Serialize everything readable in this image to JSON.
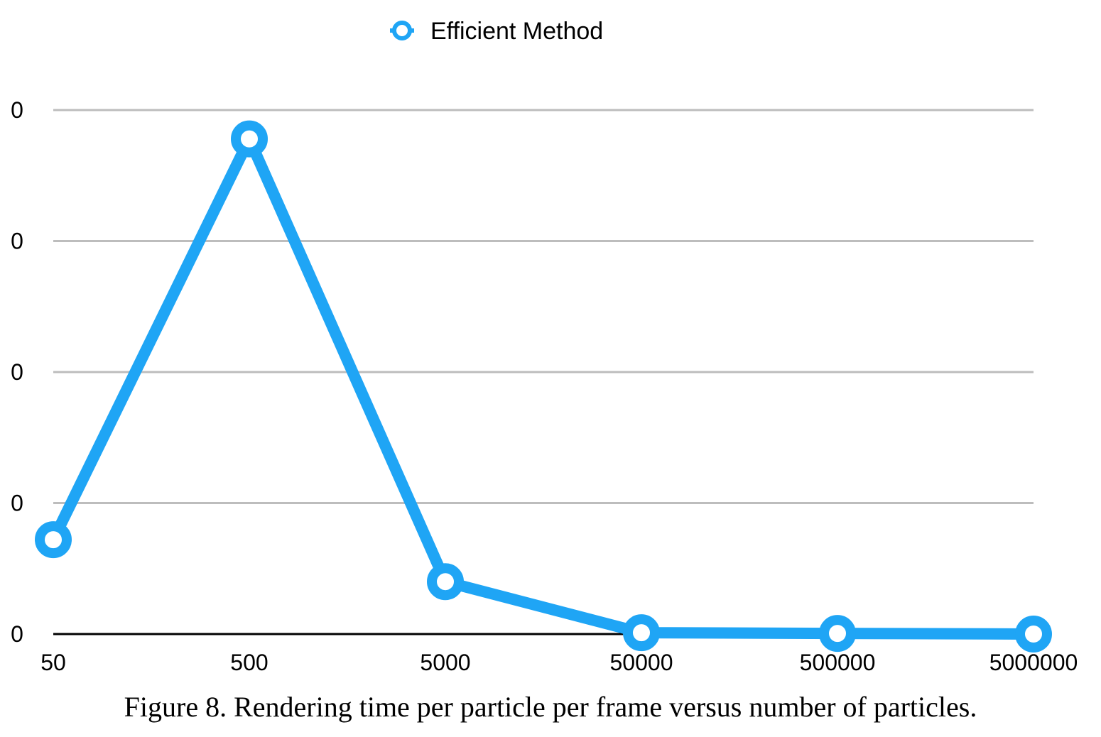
{
  "chart_data": {
    "type": "line",
    "legend": "top-center",
    "grid": true,
    "categories": [
      "50",
      "500",
      "5000",
      "50000",
      "500000",
      "5000000"
    ],
    "y_tick_labels": [
      "0",
      "0",
      "0",
      "0",
      "0"
    ],
    "ylim": [
      0,
      4
    ],
    "series": [
      {
        "name": "Efficient Method",
        "color": "#1FA5F5",
        "values": [
          0.72,
          3.78,
          0.4,
          0.01,
          0.005,
          0.0
        ]
      }
    ],
    "caption": "Figure 8. Rendering time per particle per frame versus number of particles."
  }
}
